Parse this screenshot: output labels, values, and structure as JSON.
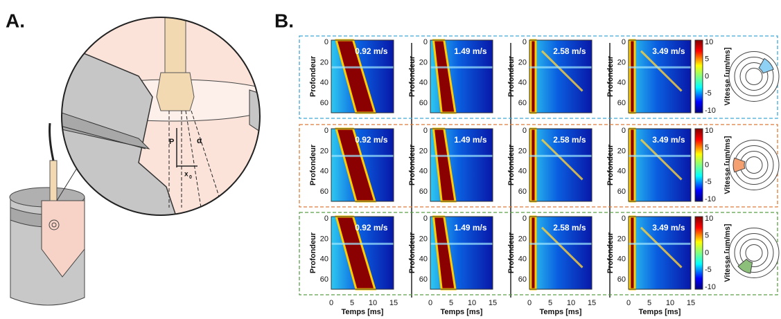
{
  "panel_a": {
    "label": "A.",
    "p_label": "P",
    "alpha_label": "α",
    "x_label": "x",
    "x_subscript": "0"
  },
  "panel_b": {
    "label": "B.",
    "y_axis_label": "Profondeur",
    "x_axis_label": "Temps [ms]",
    "colorbar_label": "Vitesse [um/ms]",
    "depth_ticks": [
      "0",
      "20",
      "40",
      "60"
    ],
    "time_ticks": [
      "0",
      "5",
      "10",
      "15"
    ],
    "colorbar_ticks": [
      "10",
      "5",
      "0",
      "-5",
      "-10"
    ],
    "speeds": [
      "0.92 m/s",
      "1.49 m/s",
      "2.58 m/s",
      "3.49 m/s"
    ]
  }
}
